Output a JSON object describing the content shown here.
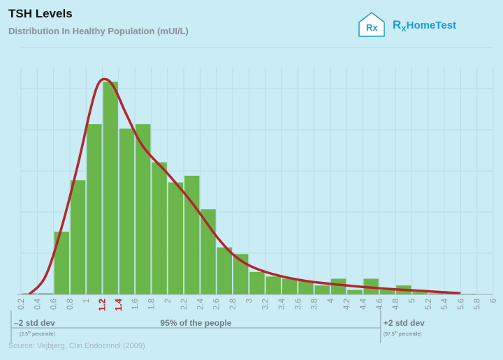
{
  "header": {
    "title": "TSH Levels",
    "subtitle": "Distribution In Healthy Population (mUI/L)"
  },
  "brand": {
    "logo_mark": "Rx",
    "name_prefix": "R",
    "name_sub": "X",
    "name_suffix": "HomeTest"
  },
  "source": "Source: Vejbjerg, Clin Endocrinol (2009)",
  "colors": {
    "background": "#c9ecf5",
    "bar": "#6ab64a",
    "curve": "#b3262e",
    "highlight_tick": "#b3262e",
    "brand": "#1a9bd1"
  },
  "chart_data": {
    "type": "bar",
    "title": "TSH Levels",
    "subtitle": "Distribution In Healthy Population (mUI/L)",
    "xlabel": "",
    "ylabel": "",
    "grid": true,
    "xlim": [
      0.2,
      6
    ],
    "bin_width": 0.2,
    "x_ticks": [
      "0.2",
      "0.4",
      "0.6",
      "0.8",
      "1",
      "1.2",
      "1.4",
      "1.6",
      "1.8",
      "2",
      "2.2",
      "2.4",
      "2.6",
      "2.8",
      "3",
      "3.2",
      "3.4",
      "3.6",
      "3.8",
      "4",
      "4.2",
      "4.4",
      "4.6",
      "4.8",
      "5",
      "5.2",
      "5.4",
      "5.6",
      "5.8",
      "6"
    ],
    "highlight_ticks": [
      "1.2",
      "1.4"
    ],
    "bins": [
      {
        "x": 0.2,
        "value": 0.5
      },
      {
        "x": 0.4,
        "value": 0.5
      },
      {
        "x": 0.6,
        "value": 28
      },
      {
        "x": 0.8,
        "value": 51
      },
      {
        "x": 1.0,
        "value": 76
      },
      {
        "x": 1.2,
        "value": 95
      },
      {
        "x": 1.4,
        "value": 74
      },
      {
        "x": 1.6,
        "value": 76
      },
      {
        "x": 1.8,
        "value": 59
      },
      {
        "x": 2.0,
        "value": 50
      },
      {
        "x": 2.2,
        "value": 53
      },
      {
        "x": 2.4,
        "value": 38
      },
      {
        "x": 2.6,
        "value": 21
      },
      {
        "x": 2.8,
        "value": 18
      },
      {
        "x": 3.0,
        "value": 10
      },
      {
        "x": 3.2,
        "value": 8
      },
      {
        "x": 3.4,
        "value": 7
      },
      {
        "x": 3.6,
        "value": 6
      },
      {
        "x": 3.8,
        "value": 4
      },
      {
        "x": 4.0,
        "value": 7
      },
      {
        "x": 4.2,
        "value": 2
      },
      {
        "x": 4.4,
        "value": 7
      },
      {
        "x": 4.6,
        "value": 2
      },
      {
        "x": 4.8,
        "value": 4
      },
      {
        "x": 5.0,
        "value": 1
      },
      {
        "x": 5.2,
        "value": 0.5
      },
      {
        "x": 5.4,
        "value": 0.5
      },
      {
        "x": 5.6,
        "value": 0.3
      }
    ],
    "ylim": [
      0,
      100
    ],
    "curve": [
      [
        0.3,
        0
      ],
      [
        0.5,
        8
      ],
      [
        0.7,
        30
      ],
      [
        0.9,
        58
      ],
      [
        1.05,
        82
      ],
      [
        1.15,
        94
      ],
      [
        1.25,
        96
      ],
      [
        1.35,
        92
      ],
      [
        1.5,
        80
      ],
      [
        1.7,
        66
      ],
      [
        2.0,
        54
      ],
      [
        2.3,
        41
      ],
      [
        2.6,
        26
      ],
      [
        2.8,
        18
      ],
      [
        3.0,
        13
      ],
      [
        3.3,
        9
      ],
      [
        3.7,
        6
      ],
      [
        4.2,
        4
      ],
      [
        4.7,
        2.5
      ],
      [
        5.2,
        1.4
      ],
      [
        5.6,
        0.5
      ]
    ],
    "annotations": {
      "left_marker": {
        "x": 0.2,
        "label": "–2 std dev",
        "note_prefix": "(2.5",
        "note_sup": "th",
        "note_suffix": " percentile)"
      },
      "right_marker": {
        "x": 4.6,
        "label": "+2 std dev",
        "note_prefix": "(97.5",
        "note_sup": "th",
        "note_suffix": " percentile)"
      },
      "range_label": "95% of the people"
    }
  }
}
